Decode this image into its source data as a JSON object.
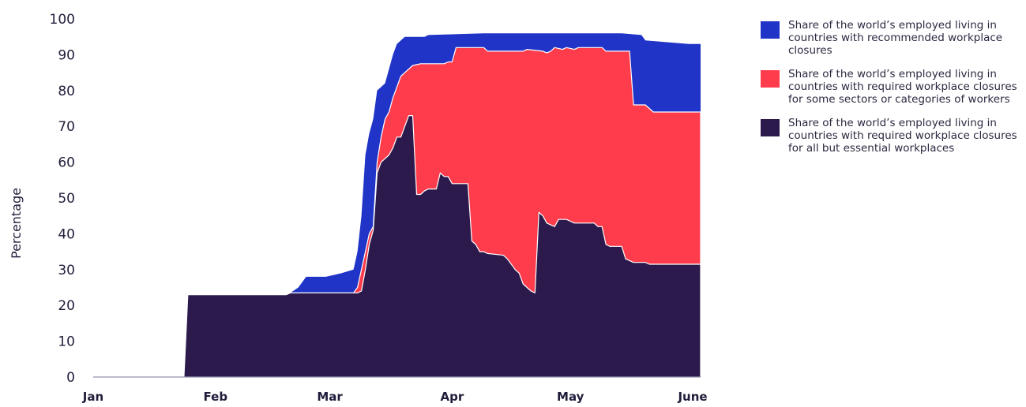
{
  "chart_data": {
    "type": "area",
    "stacked": true,
    "ylabel": "Percentage",
    "xlabel": "",
    "ylim": [
      0,
      100
    ],
    "yticks": [
      0,
      10,
      20,
      30,
      40,
      50,
      60,
      70,
      80,
      90,
      100
    ],
    "xticks": [
      {
        "label": "Jan",
        "day": 1
      },
      {
        "label": "Feb",
        "day": 32
      },
      {
        "label": "Mar",
        "day": 61
      },
      {
        "label": "Apr",
        "day": 92
      },
      {
        "label": "May",
        "day": 122
      },
      {
        "label": "June",
        "day": 153
      }
    ],
    "series": [
      {
        "name": "Share of the world’s employed living in countries with recommended workplace closures",
        "color": "#2035c8",
        "points": [
          [
            1,
            0
          ],
          [
            24,
            0
          ],
          [
            25,
            23
          ],
          [
            50,
            23
          ],
          [
            51,
            23.5
          ],
          [
            53,
            25
          ],
          [
            55,
            28
          ],
          [
            60,
            28
          ],
          [
            62,
            28.5
          ],
          [
            64,
            29
          ],
          [
            67,
            30
          ],
          [
            68,
            35
          ],
          [
            69,
            45
          ],
          [
            70,
            62
          ],
          [
            71,
            68
          ],
          [
            72,
            72
          ],
          [
            73,
            80
          ],
          [
            74,
            81
          ],
          [
            75,
            82
          ],
          [
            76,
            86
          ],
          [
            77,
            90
          ],
          [
            78,
            93
          ],
          [
            79,
            94
          ],
          [
            80,
            95
          ],
          [
            85,
            95
          ],
          [
            86,
            95.5
          ],
          [
            100,
            96
          ],
          [
            105,
            96
          ],
          [
            110,
            96
          ],
          [
            115,
            96
          ],
          [
            125,
            96
          ],
          [
            130,
            96
          ],
          [
            135,
            96
          ],
          [
            140,
            95.5
          ],
          [
            141,
            94
          ],
          [
            152,
            93
          ],
          [
            155,
            93
          ]
        ]
      },
      {
        "name": "Share of the world’s employed living in countries with required workplace closures for some sectors or categories of workers",
        "color": "#fe3c4c",
        "points": [
          [
            1,
            0
          ],
          [
            24,
            0
          ],
          [
            25,
            23
          ],
          [
            50,
            23
          ],
          [
            51,
            23.5
          ],
          [
            67,
            23.5
          ],
          [
            68,
            25
          ],
          [
            69,
            30
          ],
          [
            70,
            35
          ],
          [
            71,
            40
          ],
          [
            72,
            42
          ],
          [
            73,
            60
          ],
          [
            74,
            67
          ],
          [
            75,
            72
          ],
          [
            76,
            74
          ],
          [
            77,
            78
          ],
          [
            78,
            81
          ],
          [
            79,
            84
          ],
          [
            80,
            85
          ],
          [
            82,
            87
          ],
          [
            84,
            87.5
          ],
          [
            90,
            87.5
          ],
          [
            91,
            88
          ],
          [
            92,
            88
          ],
          [
            93,
            92
          ],
          [
            100,
            92
          ],
          [
            101,
            91
          ],
          [
            110,
            91
          ],
          [
            111,
            91.5
          ],
          [
            115,
            91
          ],
          [
            116,
            90.5
          ],
          [
            117,
            91
          ],
          [
            118,
            92
          ],
          [
            120,
            91.5
          ],
          [
            121,
            92
          ],
          [
            123,
            91.5
          ],
          [
            124,
            92
          ],
          [
            125,
            92
          ],
          [
            130,
            92
          ],
          [
            131,
            91
          ],
          [
            137,
            91
          ],
          [
            138,
            76
          ],
          [
            141,
            76
          ],
          [
            142,
            75
          ],
          [
            143,
            74
          ],
          [
            155,
            74
          ]
        ]
      },
      {
        "name": "Share of the world’s employed living in countries with required workplace closures for all but essential workplaces",
        "color": "#2c1a4d",
        "points": [
          [
            1,
            0
          ],
          [
            24,
            0
          ],
          [
            25,
            23
          ],
          [
            50,
            23
          ],
          [
            51,
            23.5
          ],
          [
            68,
            23.5
          ],
          [
            69,
            24
          ],
          [
            70,
            30
          ],
          [
            71,
            37
          ],
          [
            72,
            41
          ],
          [
            73,
            57
          ],
          [
            74,
            60
          ],
          [
            75,
            61
          ],
          [
            76,
            62
          ],
          [
            77,
            64
          ],
          [
            78,
            67
          ],
          [
            79,
            67
          ],
          [
            80,
            70
          ],
          [
            81,
            73
          ],
          [
            82,
            73
          ],
          [
            83,
            51
          ],
          [
            84,
            51
          ],
          [
            85,
            52
          ],
          [
            86,
            52.5
          ],
          [
            88,
            52.5
          ],
          [
            89,
            57
          ],
          [
            90,
            56
          ],
          [
            91,
            56
          ],
          [
            92,
            54
          ],
          [
            93,
            54
          ],
          [
            96,
            54
          ],
          [
            97,
            38
          ],
          [
            98,
            37
          ],
          [
            99,
            35
          ],
          [
            100,
            35
          ],
          [
            101,
            34.5
          ],
          [
            105,
            34
          ],
          [
            106,
            33
          ],
          [
            108,
            30
          ],
          [
            109,
            29
          ],
          [
            110,
            26
          ],
          [
            111,
            25
          ],
          [
            112,
            24
          ],
          [
            113,
            23.5
          ],
          [
            114,
            46
          ],
          [
            115,
            45
          ],
          [
            116,
            43
          ],
          [
            118,
            42
          ],
          [
            119,
            44
          ],
          [
            121,
            44
          ],
          [
            122,
            43.5
          ],
          [
            123,
            43
          ],
          [
            128,
            43
          ],
          [
            129,
            42
          ],
          [
            130,
            42
          ],
          [
            131,
            37
          ],
          [
            132,
            36.5
          ],
          [
            135,
            36.5
          ],
          [
            136,
            33
          ],
          [
            137,
            32.5
          ],
          [
            138,
            32
          ],
          [
            141,
            32
          ],
          [
            142,
            31.5
          ],
          [
            155,
            31.5
          ]
        ]
      }
    ]
  }
}
